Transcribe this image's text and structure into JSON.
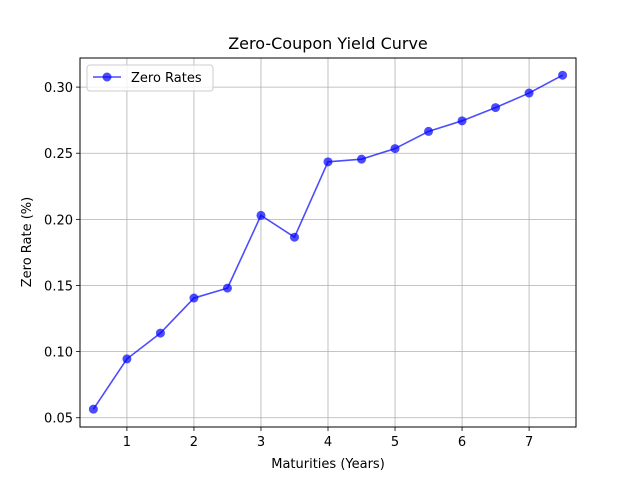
{
  "chart_data": {
    "type": "line",
    "title": "Zero-Coupon Yield Curve",
    "xlabel": "Maturities (Years)",
    "ylabel": "Zero Rate (%)",
    "xlim": [
      0.3,
      7.7
    ],
    "ylim": [
      0.043,
      0.322
    ],
    "xticks": [
      1,
      2,
      3,
      4,
      5,
      6,
      7
    ],
    "yticks": [
      0.05,
      0.1,
      0.15,
      0.2,
      0.25,
      0.3
    ],
    "ytick_labels": [
      "0.05",
      "0.10",
      "0.15",
      "0.20",
      "0.25",
      "0.30"
    ],
    "grid": true,
    "legend_position": "top-left",
    "series": [
      {
        "name": "Zero Rates",
        "color": "#0000ff",
        "marker": "circle",
        "x": [
          0.5,
          1.0,
          1.5,
          2.0,
          2.5,
          3.0,
          3.5,
          4.0,
          4.5,
          5.0,
          5.5,
          6.0,
          6.5,
          7.0,
          7.5
        ],
        "y": [
          0.0565,
          0.0945,
          0.114,
          0.1405,
          0.148,
          0.203,
          0.1865,
          0.2435,
          0.2455,
          0.2535,
          0.2665,
          0.2745,
          0.2845,
          0.2955,
          0.309
        ]
      }
    ]
  }
}
